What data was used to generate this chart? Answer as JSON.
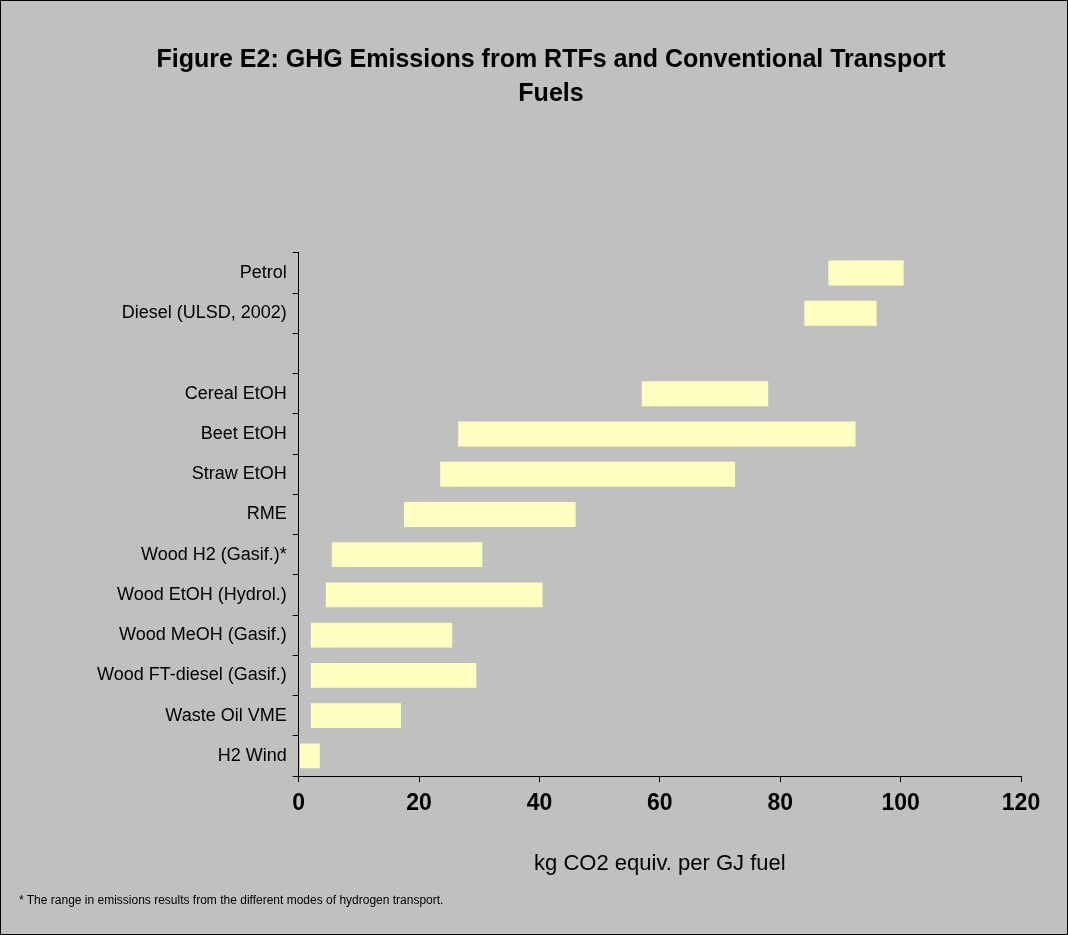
{
  "chart_data": {
    "type": "bar",
    "orientation": "horizontal",
    "title": "Figure E2: GHG Emissions from RTFs and Conventional Transport Fuels",
    "xlabel": "kg CO2 equiv. per GJ fuel",
    "categories": [
      "Petrol",
      "Diesel (ULSD, 2002)",
      null,
      "Cereal EtOH",
      "Beet EtOH",
      "Straw EtOH",
      "RME",
      "Wood H2 (Gasif.)*",
      "Wood EtOH (Hydrol.)",
      "Wood MeOH (Gasif.)",
      "Wood FT-diesel (Gasif.)",
      "Waste Oil VME",
      "H2 Wind"
    ],
    "base": [
      88,
      84,
      null,
      57,
      26.5,
      23.5,
      17.5,
      5.5,
      4.5,
      2,
      2,
      2,
      0.2
    ],
    "values": [
      12.5,
      12,
      null,
      21,
      66,
      49,
      28.5,
      25,
      36,
      23.5,
      27.5,
      15,
      3.3
    ],
    "color": "#ffffc0",
    "xlim": [
      0,
      120
    ],
    "xticks": [
      0,
      20,
      40,
      60,
      80,
      100,
      120
    ],
    "annotations": [
      "* The range in emissions results from the different modes of hydrogen transport."
    ]
  }
}
